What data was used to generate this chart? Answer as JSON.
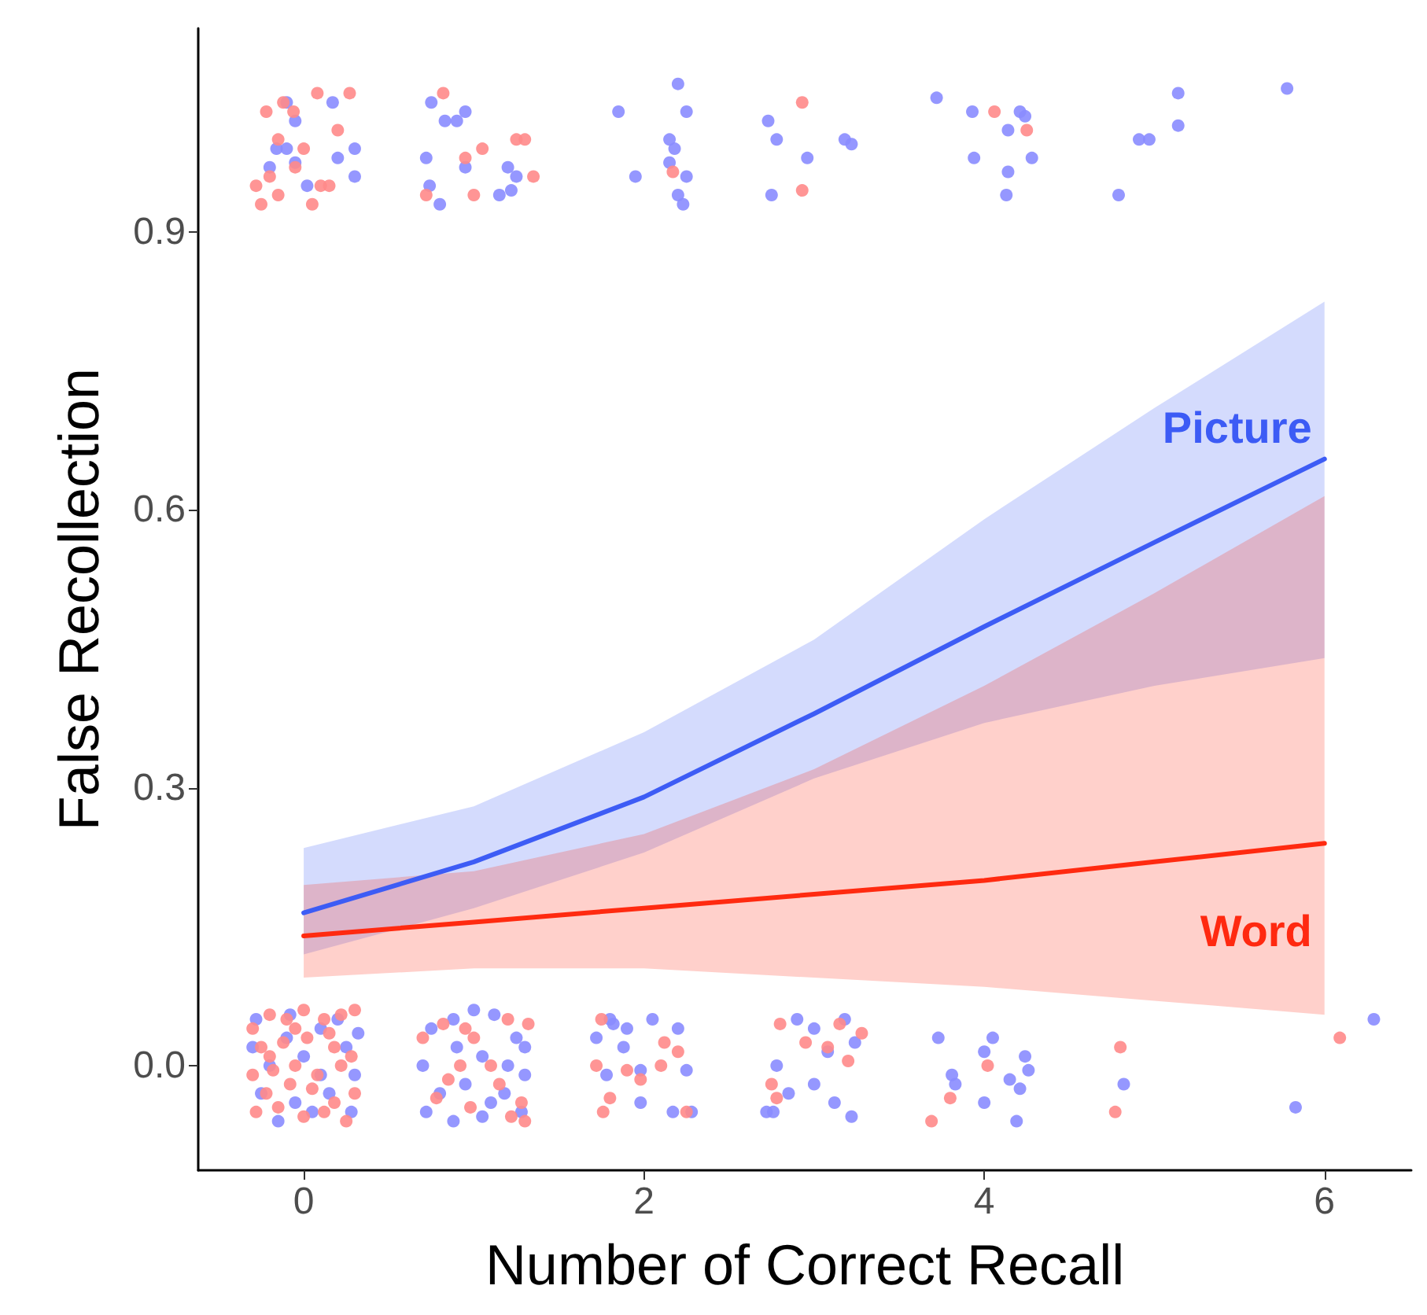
{
  "chart_data": {
    "type": "line",
    "xlabel": "Number of Correct Recall",
    "ylabel": "False Recollection",
    "xlim": [
      -0.62,
      6.51
    ],
    "xticks": [
      0,
      2,
      4,
      6
    ],
    "ylim": [
      -0.113,
      1.12
    ],
    "yticks": [
      {
        "value": 0,
        "label": "0.0"
      },
      {
        "value": 0.3,
        "label": "0.3"
      },
      {
        "value": 0.6,
        "label": "0.6"
      },
      {
        "value": 0.9,
        "label": "0.9"
      }
    ],
    "grid": false,
    "legend": false,
    "line_style": "solid",
    "series": [
      {
        "type": "scatter",
        "marker": "circle",
        "color": "#8a8cff",
        "x": [
          -0.1,
          0.17,
          -0.05,
          -0.16,
          -0.1,
          0.3,
          -0.2,
          0.3,
          0.2,
          -0.05,
          0.02,
          0.75,
          0.83,
          0.9,
          0.95,
          0.72,
          0.74,
          0.8,
          0.95,
          1.2,
          1.25,
          1.15,
          1.22,
          2.2,
          2.25,
          1.85,
          2.15,
          2.18,
          2.15,
          2.25,
          2.2,
          2.23,
          1.95,
          2.73,
          2.78,
          2.75,
          2.96,
          3.18,
          3.22,
          3.72,
          3.93,
          3.94,
          4.14,
          4.21,
          4.24,
          4.14,
          4.28,
          4.13,
          4.91,
          4.97,
          4.79,
          5.14,
          5.14,
          5.78,
          -0.28,
          -0.1,
          0.1,
          0.25,
          -0.2,
          0.0,
          0.3,
          -0.25,
          -0.05,
          0.15,
          0.28,
          -0.15,
          0.05,
          -0.3,
          0.2,
          0.1,
          -0.08,
          0.32,
          0.75,
          0.88,
          1.0,
          1.12,
          1.25,
          0.7,
          0.9,
          1.05,
          1.2,
          1.3,
          0.8,
          0.95,
          1.1,
          1.28,
          0.72,
          0.88,
          1.05,
          1.18,
          1.3,
          1.8,
          1.72,
          1.9,
          2.05,
          2.2,
          1.88,
          1.78,
          1.98,
          2.25,
          1.98,
          2.17,
          2.28,
          1.82,
          2.72,
          2.76,
          2.78,
          2.9,
          3.0,
          3.18,
          3.08,
          3.0,
          3.12,
          3.22,
          3.24,
          2.85,
          3.73,
          4.05,
          4.0,
          3.81,
          3.83,
          4.15,
          4.24,
          4.26,
          4.21,
          4.0,
          4.19,
          4.82,
          5.83,
          6.29
        ],
        "values": [
          1.04,
          1.04,
          1.02,
          0.99,
          0.99,
          0.99,
          0.97,
          0.96,
          0.98,
          0.975,
          0.95,
          1.04,
          1.02,
          1.02,
          1.03,
          0.98,
          0.95,
          0.93,
          0.97,
          0.97,
          0.96,
          0.94,
          0.945,
          1.06,
          1.03,
          1.03,
          1.0,
          0.99,
          0.975,
          0.96,
          0.94,
          0.93,
          0.96,
          1.02,
          1.0,
          0.94,
          0.98,
          1.0,
          0.995,
          1.045,
          1.03,
          0.98,
          1.01,
          1.03,
          1.025,
          0.965,
          0.98,
          0.94,
          1.0,
          1.0,
          0.94,
          1.05,
          1.015,
          1.055,
          0.05,
          0.03,
          0.04,
          0.02,
          0.0,
          0.01,
          -0.01,
          -0.03,
          -0.04,
          -0.03,
          -0.05,
          -0.06,
          -0.05,
          0.02,
          0.05,
          -0.01,
          0.055,
          0.035,
          0.04,
          0.05,
          0.06,
          0.055,
          0.03,
          0.0,
          0.02,
          0.01,
          0.0,
          0.02,
          -0.03,
          -0.02,
          -0.04,
          -0.05,
          -0.05,
          -0.06,
          -0.055,
          -0.03,
          -0.01,
          0.05,
          0.03,
          0.04,
          0.05,
          0.04,
          0.02,
          -0.01,
          -0.005,
          -0.005,
          -0.04,
          -0.05,
          -0.05,
          0.045,
          -0.05,
          -0.05,
          0.0,
          0.05,
          0.04,
          0.05,
          0.015,
          -0.02,
          -0.04,
          -0.055,
          0.025,
          -0.03,
          0.03,
          0.03,
          0.015,
          -0.01,
          -0.02,
          -0.015,
          0.01,
          -0.005,
          -0.025,
          -0.04,
          -0.06,
          -0.02,
          -0.045,
          0.05
        ]
      },
      {
        "type": "scatter",
        "marker": "circle",
        "color": "#ff8a8a",
        "x": [
          -0.12,
          -0.22,
          0.08,
          0.27,
          -0.06,
          0.2,
          -0.15,
          -0.2,
          0.0,
          -0.28,
          -0.05,
          0.1,
          -0.25,
          0.05,
          0.15,
          -0.15,
          0.82,
          1.05,
          1.25,
          1.3,
          0.95,
          0.72,
          1.0,
          1.35,
          2.17,
          2.93,
          2.93,
          4.06,
          4.25,
          -0.3,
          -0.2,
          -0.1,
          0.0,
          0.12,
          0.22,
          0.3,
          -0.25,
          -0.12,
          0.02,
          0.18,
          0.28,
          -0.3,
          -0.18,
          -0.05,
          0.08,
          0.22,
          -0.22,
          -0.08,
          0.05,
          0.18,
          0.3,
          -0.28,
          -0.15,
          0.0,
          0.12,
          0.25,
          -0.05,
          0.15,
          -0.2,
          0.7,
          0.82,
          1.2,
          1.32,
          0.95,
          0.92,
          1.0,
          1.1,
          0.85,
          1.15,
          0.78,
          0.98,
          1.22,
          1.3,
          1.28,
          1.75,
          1.72,
          1.8,
          2.12,
          2.2,
          1.9,
          1.98,
          2.1,
          2.25,
          1.76,
          2.95,
          3.15,
          3.08,
          3.2,
          2.8,
          3.28,
          2.75,
          2.78,
          3.69,
          3.8,
          4.02,
          4.8,
          4.77,
          6.09
        ],
        "values": [
          1.04,
          1.03,
          1.05,
          1.05,
          1.03,
          1.01,
          1.0,
          0.96,
          0.99,
          0.95,
          0.97,
          0.95,
          0.93,
          0.93,
          0.95,
          0.94,
          1.05,
          0.99,
          1.0,
          1.0,
          0.98,
          0.94,
          0.94,
          0.96,
          0.965,
          1.04,
          0.945,
          1.03,
          1.01,
          0.04,
          0.055,
          0.05,
          0.06,
          0.05,
          0.055,
          0.06,
          0.02,
          0.025,
          0.03,
          0.02,
          0.01,
          -0.01,
          -0.005,
          0.0,
          -0.01,
          0.0,
          -0.03,
          -0.02,
          -0.025,
          -0.04,
          -0.03,
          -0.05,
          -0.045,
          -0.055,
          -0.05,
          -0.06,
          0.04,
          0.035,
          0.01,
          0.03,
          0.045,
          0.05,
          0.045,
          0.04,
          0.0,
          0.03,
          0.0,
          -0.015,
          -0.02,
          -0.035,
          -0.045,
          -0.055,
          -0.06,
          -0.04,
          0.05,
          0.0,
          -0.035,
          0.025,
          0.015,
          -0.005,
          -0.015,
          0.0,
          -0.05,
          -0.05,
          0.025,
          0.045,
          0.02,
          0.005,
          0.045,
          0.035,
          -0.02,
          -0.035,
          -0.06,
          -0.035,
          0.0,
          0.02,
          -0.05,
          0.03
        ]
      },
      {
        "name": "Picture",
        "color": "#3d5cf5",
        "x": [
          0,
          1,
          2,
          3,
          4,
          5,
          6
        ],
        "values": [
          0.165,
          0.22,
          0.29,
          0.38,
          0.474,
          0.565,
          0.655
        ],
        "lower": [
          0.12,
          0.17,
          0.23,
          0.31,
          0.37,
          0.41,
          0.44
        ],
        "upper": [
          0.235,
          0.28,
          0.36,
          0.46,
          0.59,
          0.71,
          0.825
        ]
      },
      {
        "name": "Word",
        "color": "#ff2a10",
        "x": [
          0,
          1,
          2,
          3,
          4,
          5,
          6
        ],
        "values": [
          0.14,
          0.155,
          0.17,
          0.185,
          0.2,
          0.22,
          0.24
        ],
        "lower": [
          0.095,
          0.105,
          0.105,
          0.095,
          0.085,
          0.07,
          0.055
        ],
        "upper": [
          0.195,
          0.21,
          0.25,
          0.32,
          0.41,
          0.51,
          0.615
        ]
      }
    ]
  }
}
